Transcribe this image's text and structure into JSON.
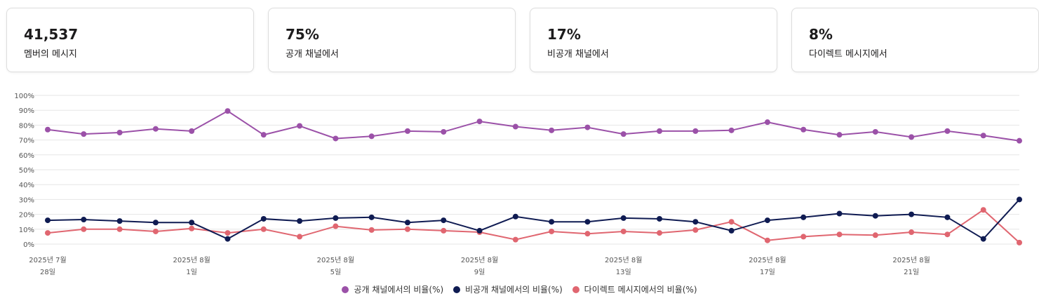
{
  "stats": [
    {
      "value": "41,537",
      "label": "멤버의 메시지"
    },
    {
      "value": "75%",
      "label": "공개 채널에서"
    },
    {
      "value": "17%",
      "label": "비공개 채널에서"
    },
    {
      "value": "8%",
      "label": "다이렉트 메시지에서"
    }
  ],
  "colors": {
    "public": "#9b51a8",
    "private": "#0f1b52",
    "dm": "#e06670",
    "grid": "#e6e6e6",
    "axis_text": "#555555"
  },
  "chart_data": {
    "type": "line",
    "title": "",
    "xlabel": "",
    "ylabel": "",
    "ylim": [
      0,
      100
    ],
    "yticks": [
      "0%",
      "10%",
      "20%",
      "30%",
      "40%",
      "50%",
      "60%",
      "70%",
      "80%",
      "90%",
      "100%"
    ],
    "x": [
      "2025-07-28",
      "2025-07-29",
      "2025-07-30",
      "2025-07-31",
      "2025-08-01",
      "2025-08-02",
      "2025-08-03",
      "2025-08-04",
      "2025-08-05",
      "2025-08-06",
      "2025-08-07",
      "2025-08-08",
      "2025-08-09",
      "2025-08-10",
      "2025-08-11",
      "2025-08-12",
      "2025-08-13",
      "2025-08-14",
      "2025-08-15",
      "2025-08-16",
      "2025-08-17",
      "2025-08-18",
      "2025-08-19",
      "2025-08-20",
      "2025-08-21",
      "2025-08-22",
      "2025-08-23",
      "2025-08-24"
    ],
    "xtick_labels": [
      {
        "line1": "2025년 7월",
        "line2": "28일"
      },
      {
        "line1": "2025년 8월",
        "line2": "1일"
      },
      {
        "line1": "2025년 8월",
        "line2": "5일"
      },
      {
        "line1": "2025년 8월",
        "line2": "9일"
      },
      {
        "line1": "2025년 8월",
        "line2": "13일"
      },
      {
        "line1": "2025년 8월",
        "line2": "17일"
      },
      {
        "line1": "2025년 8월",
        "line2": "21일"
      }
    ],
    "series": [
      {
        "name": "공개 채널에서의 비율(%)",
        "color": "#9b51a8",
        "values": [
          77,
          74,
          75,
          77.5,
          76,
          89.5,
          73.5,
          79.5,
          71,
          72.5,
          76,
          75.5,
          82.5,
          79,
          76.5,
          78.5,
          74,
          76,
          76,
          76.5,
          82,
          77,
          73.5,
          75.5,
          72,
          76,
          73,
          69.5
        ]
      },
      {
        "name": "비공개 채널에서의 비율(%)",
        "color": "#0f1b52",
        "values": [
          16,
          16.5,
          15.5,
          14.5,
          14.5,
          3.5,
          17,
          15.5,
          17.5,
          18,
          14.5,
          16,
          9,
          18.5,
          15,
          15,
          17.5,
          17,
          15,
          9,
          16,
          18,
          20.5,
          19,
          20,
          18,
          3.5,
          30
        ]
      },
      {
        "name": "다이렉트 메시지에서의 비율(%)",
        "color": "#e06670",
        "values": [
          7.5,
          10,
          10,
          8.5,
          10.5,
          7.5,
          10,
          5,
          12,
          9.5,
          10,
          9,
          8,
          3,
          8.5,
          7,
          8.5,
          7.5,
          9.5,
          15,
          2.5,
          5,
          6.5,
          6,
          8,
          6.5,
          23,
          1
        ]
      }
    ],
    "legend_position": "bottom",
    "grid": true
  }
}
